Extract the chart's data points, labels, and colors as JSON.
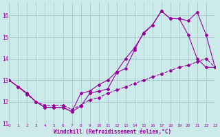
{
  "xlabel": "Windchill (Refroidissement éolien,°C)",
  "bg_color": "#cdeaea",
  "grid_color": "#aacfcf",
  "line_color": "#990099",
  "xlim": [
    0,
    23
  ],
  "ylim": [
    11,
    16.6
  ],
  "yticks": [
    11,
    12,
    13,
    14,
    15,
    16
  ],
  "xticks": [
    0,
    1,
    2,
    3,
    4,
    5,
    6,
    7,
    8,
    9,
    10,
    11,
    12,
    13,
    14,
    15,
    16,
    17,
    18,
    19,
    20,
    21,
    22,
    23
  ],
  "series1_x": [
    0,
    1,
    2,
    3,
    4,
    5,
    6,
    7,
    8,
    9,
    10,
    11,
    12,
    13,
    14,
    15,
    16,
    17,
    18,
    19,
    20,
    21,
    22,
    23
  ],
  "series1_y": [
    13.0,
    12.7,
    12.4,
    12.0,
    11.75,
    11.75,
    11.75,
    11.55,
    11.8,
    12.4,
    12.5,
    12.6,
    13.35,
    13.55,
    14.4,
    15.2,
    15.55,
    16.2,
    15.85,
    15.85,
    15.1,
    14.0,
    13.6,
    13.6
  ],
  "series2_x": [
    0,
    1,
    2,
    3,
    4,
    5,
    6,
    7,
    8,
    9,
    10,
    11,
    12,
    13,
    14,
    15,
    16,
    17,
    18,
    19,
    20,
    21,
    22,
    23
  ],
  "series2_y": [
    13.0,
    12.7,
    12.4,
    12.0,
    11.75,
    11.75,
    11.75,
    11.55,
    12.4,
    12.5,
    12.8,
    13.0,
    13.4,
    14.0,
    14.5,
    15.15,
    15.55,
    16.2,
    15.85,
    15.85,
    15.75,
    16.15,
    15.1,
    13.6
  ],
  "series3_x": [
    0,
    1,
    2,
    3,
    4,
    5,
    6,
    7,
    8,
    9,
    10,
    11,
    12,
    13,
    14,
    15,
    16,
    17,
    18,
    19,
    20,
    21,
    22,
    23
  ],
  "series3_y": [
    13.0,
    12.7,
    12.35,
    12.0,
    11.85,
    11.85,
    11.85,
    11.65,
    11.85,
    12.1,
    12.2,
    12.4,
    12.55,
    12.7,
    12.85,
    13.0,
    13.15,
    13.3,
    13.45,
    13.6,
    13.7,
    13.85,
    14.0,
    13.6
  ]
}
